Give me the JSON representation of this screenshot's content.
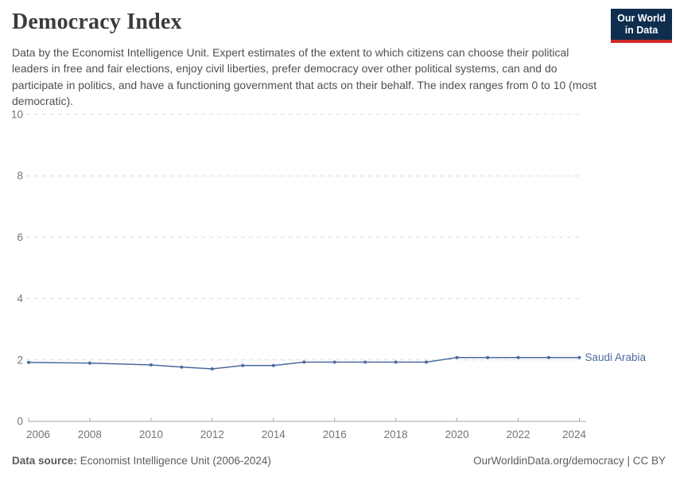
{
  "header": {
    "title": "Democracy Index",
    "subtitle": "Data by the Economist Intelligence Unit. Expert estimates of the extent to which citizens can choose their political leaders in free and fair elections, enjoy civil liberties, prefer democracy over other political systems, can and do participate in politics, and have a functioning government that acts on their behalf. The index ranges from 0 to 10 (most democratic).",
    "logo_line1": "Our World",
    "logo_line2": "in Data"
  },
  "chart_data": {
    "type": "line",
    "title": "Democracy Index",
    "xlabel": "",
    "ylabel": "",
    "xlim": [
      2006,
      2024
    ],
    "ylim": [
      0,
      10
    ],
    "xticks": [
      2006,
      2008,
      2010,
      2012,
      2014,
      2016,
      2018,
      2020,
      2022,
      2024
    ],
    "yticks": [
      0,
      2,
      4,
      6,
      8,
      10
    ],
    "grid": "horizontal-dashed",
    "legend_position": "end-of-line-label",
    "series": [
      {
        "name": "Saudi Arabia",
        "color": "#4c6a9e",
        "x": [
          2006,
          2008,
          2010,
          2011,
          2012,
          2013,
          2014,
          2015,
          2016,
          2017,
          2018,
          2019,
          2020,
          2021,
          2022,
          2023,
          2024
        ],
        "y": [
          1.92,
          1.9,
          1.84,
          1.77,
          1.71,
          1.82,
          1.82,
          1.93,
          1.93,
          1.93,
          1.93,
          1.93,
          2.08,
          2.08,
          2.08,
          2.08,
          2.08
        ]
      }
    ]
  },
  "footer": {
    "source_label": "Data source:",
    "source_value": "Economist Intelligence Unit (2006-2024)",
    "credit": "OurWorldinData.org/democracy | CC BY"
  },
  "colors": {
    "accent_line": "#4c6a9e",
    "logo_navy": "#0f2e4f",
    "logo_red": "#cf2a27",
    "grid": "#dcdcdc",
    "axis": "#a7a7a7",
    "tick_label": "#757575",
    "title_text": "#3b3b3b",
    "subtitle_text": "#4f4f4f",
    "footer_text": "#5c5c5c"
  }
}
